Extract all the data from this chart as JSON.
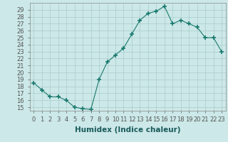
{
  "x": [
    0,
    1,
    2,
    3,
    4,
    5,
    6,
    7,
    8,
    9,
    10,
    11,
    12,
    13,
    14,
    15,
    16,
    17,
    18,
    19,
    20,
    21,
    22,
    23
  ],
  "y": [
    18.5,
    17.5,
    16.5,
    16.5,
    16.0,
    15.0,
    14.8,
    14.7,
    19.0,
    21.5,
    22.5,
    23.5,
    25.5,
    27.5,
    28.5,
    28.8,
    29.5,
    27.0,
    27.5,
    27.0,
    26.5,
    25.0,
    25.0,
    23.0
  ],
  "line_color": "#1a7a6e",
  "marker": "+",
  "marker_size": 4,
  "bg_color": "#cce8e8",
  "grid_color": "#aacccc",
  "xlabel": "Humidex (Indice chaleur)",
  "xlim": [
    -0.5,
    23.5
  ],
  "ylim": [
    14.5,
    30.0
  ],
  "yticks": [
    15,
    16,
    17,
    18,
    19,
    20,
    21,
    22,
    23,
    24,
    25,
    26,
    27,
    28,
    29
  ],
  "xtick_labels": [
    "0",
    "1",
    "2",
    "3",
    "4",
    "5",
    "6",
    "7",
    "8",
    "9",
    "10",
    "11",
    "12",
    "13",
    "14",
    "15",
    "16",
    "17",
    "18",
    "19",
    "20",
    "21",
    "22",
    "23"
  ],
  "label_fontsize": 7.5,
  "tick_fontsize": 6
}
